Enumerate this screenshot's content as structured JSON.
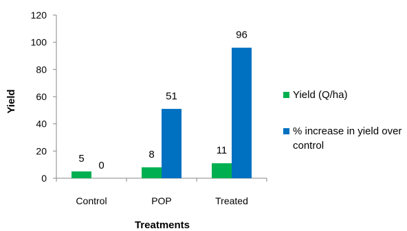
{
  "chart_data": {
    "type": "bar",
    "categories": [
      "Control",
      "POP",
      "Treated"
    ],
    "series": [
      {
        "name": "Yield (Q/ha)",
        "values": [
          5,
          8,
          11
        ],
        "labels": [
          "5",
          "8",
          "11"
        ],
        "color": "#00b050"
      },
      {
        "name": "% increase in yield over control",
        "values": [
          0,
          51,
          96
        ],
        "labels": [
          "0",
          "51",
          "96"
        ],
        "color": "#0070c0"
      }
    ],
    "xlabel": "Treatments",
    "ylabel": "Yield",
    "ylim": [
      0,
      120
    ],
    "yticks": [
      "0",
      "20",
      "40",
      "60",
      "80",
      "100",
      "120"
    ],
    "legend_position": "right",
    "grid": false
  }
}
